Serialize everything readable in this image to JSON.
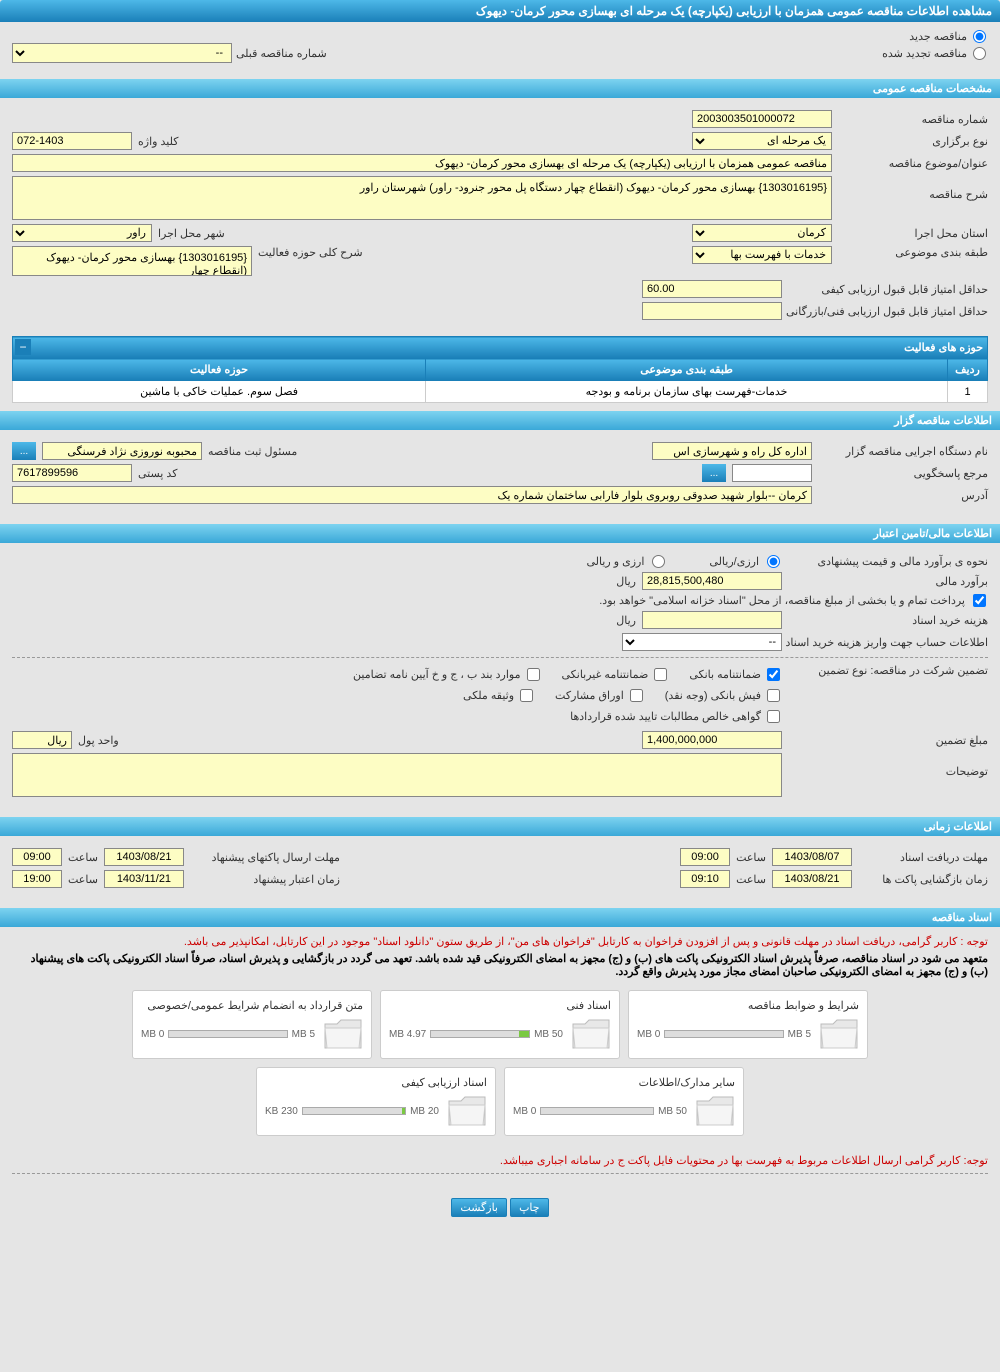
{
  "page_title": "مشاهده اطلاعات مناقصه عمومی همزمان با ارزیابی (یکپارچه) یک مرحله ای بهسازی محور کرمان- دیهوک",
  "top_radios": {
    "new_label": "مناقصه جدید",
    "renew_label": "مناقصه تجدید شده",
    "prev_number_label": "شماره مناقصه قبلی",
    "prev_number_value": "--"
  },
  "sections": {
    "general": "مشخصات مناقصه عمومی",
    "activity_areas": "حوزه های فعالیت",
    "organizer": "اطلاعات مناقصه گزار",
    "financial": "اطلاعات مالی/تامین اعتبار",
    "timing": "اطلاعات زمانی",
    "docs": "اسناد مناقصه"
  },
  "general": {
    "tender_no_label": "شماره مناقصه",
    "tender_no": "2003003501000072",
    "type_label": "نوع برگزاری",
    "type_value": "یک مرحله ای",
    "keyword_label": "کلید واژه",
    "keyword_value": "072-1403",
    "subject_label": "عنوان/موضوع مناقصه",
    "subject_value": "مناقصه عمومی همزمان با ارزیابی (یکپارچه) یک مرحله ای بهسازی محور کرمان- دیهوک",
    "desc_label": "شرح مناقصه",
    "desc_value": "{1303016195} بهسازی محور کرمان- دیهوک (انقطاع چهار دستگاه پل محور جنرود- راور) شهرستان راور",
    "province_label": "استان محل اجرا",
    "province_value": "کرمان",
    "city_label": "شهر محل اجرا",
    "city_value": "راور",
    "category_label": "طبقه بندی موضوعی",
    "category_value": "خدمات با فهرست بها",
    "activity_scope_label": "شرح کلی حوزه فعالیت",
    "activity_scope_value": "{1303016195} بهسازی محور کرمان- دیهوک (انقطاع چهار",
    "min_quality_label": "حداقل امتیاز قابل قبول ارزیابی کیفی",
    "min_quality_value": "60.00",
    "min_tech_label": "حداقل امتیاز قابل قبول ارزیابی فنی/بازرگانی"
  },
  "activity_table": {
    "col_row": "ردیف",
    "col_category": "طبقه بندی موضوعی",
    "col_area": "حوزه فعالیت",
    "row1_idx": "1",
    "row1_cat": "خدمات-فهرست بهای سازمان برنامه و بودجه",
    "row1_area": "فصل سوم. عملیات خاکی با ماشین"
  },
  "organizer": {
    "exec_label": "نام دستگاه اجرایی مناقصه گزار",
    "exec_value": "اداره کل راه و شهرسازی اس",
    "reg_officer_label": "مسئول ثبت مناقصه",
    "reg_officer_value": "محبوبه نوروزی نژاد فرسنگی",
    "contact_label": "مرجع پاسخگویی",
    "postal_label": "کد پستی",
    "postal_value": "7617899596",
    "address_label": "آدرس",
    "address_value": "کرمان --بلوار شهید صدوقی روبروی بلوار فارابی ساختمان شماره یک"
  },
  "financial": {
    "estimate_method_label": "نحوه ی برآورد مالی و قیمت پیشنهادی",
    "rial_opt": "ارزی/ریالی",
    "currency_opt": "ارزی و ریالی",
    "estimate_label": "برآورد مالی",
    "estimate_value": "28,815,500,480",
    "unit_rial": "ریال",
    "treasury_note": "پرداخت تمام و یا بخشی از مبلغ مناقصه، از محل \"اسناد خزانه اسلامی\" خواهد بود.",
    "doc_fee_label": "هزینه خرید اسناد",
    "account_info_label": "اطلاعات حساب جهت واریز هزینه خرید اسناد",
    "account_value": "--",
    "guarantee_type_label": "تضمین شرکت در مناقصه:   نوع تضمین",
    "cb_bank_guarantee": "ضمانتنامه بانکی",
    "cb_nonbank_guarantee": "ضمانتنامه غیربانکی",
    "cb_clauses": "موارد بند ب ، ج و خ آیین نامه تضامین",
    "cb_cash": "فیش بانکی (وجه نقد)",
    "cb_bonds": "اوراق مشارکت",
    "cb_property": "وثیقه ملکی",
    "cb_receivables": "گواهی خالص مطالبات تایید شده قراردادها",
    "guarantee_amount_label": "مبلغ تضمین",
    "guarantee_amount": "1,400,000,000",
    "unit_label": "واحد پول",
    "unit_value": "ریال",
    "notes_label": "توضیحات"
  },
  "timing": {
    "receive_deadline_label": "مهلت دریافت اسناد",
    "receive_date": "1403/08/07",
    "receive_time_label": "ساعت",
    "receive_time": "09:00",
    "send_deadline_label": "مهلت ارسال پاکتهای پیشنهاد",
    "send_date": "1403/08/21",
    "send_time": "09:00",
    "open_label": "زمان بازگشایی پاکت ها",
    "open_date": "1403/08/21",
    "open_time": "09:10",
    "validity_label": "زمان اعتبار پیشنهاد",
    "validity_date": "1403/11/21",
    "validity_time": "19:00"
  },
  "docs": {
    "note1": "توجه : کاربر گرامی، دریافت اسناد در مهلت قانونی و پس از افزودن فراخوان به کارتابل \"فراخوان های من\"، از طریق ستون \"دانلود اسناد\" موجود در این کارتابل، امکانپذیر می باشد.",
    "note2_bold": "متعهد می شود در اسناد مناقصه، صرفاً پذیرش اسناد الکترونیکی پاکت های (ب) و (ج) مجهز به امضای الکترونیکی قید شده باشد. تعهد می گردد در بازگشایی و پذیرش اسناد، صرفاً اسناد الکترونیکی پاکت های پیشنهاد (ب) و (ج) مجهز به امضای الکترونیکی صاحبان امضای مجاز مورد پذیرش واقع گردد.",
    "note3": "توجه: کاربر گرامی ارسال اطلاعات مربوط به فهرست بها در محتویات فایل پاکت ج در سامانه اجباری میباشد.",
    "cards": [
      {
        "title": "شرایط و ضوابط مناقصه",
        "used": "0 MB",
        "limit": "5 MB",
        "fill_pct": 0
      },
      {
        "title": "اسناد فنی",
        "used": "4.97 MB",
        "limit": "50 MB",
        "fill_pct": 10
      },
      {
        "title": "متن قرارداد به انضمام شرایط عمومی/خصوصی",
        "used": "0 MB",
        "limit": "5 MB",
        "fill_pct": 0
      },
      {
        "title": "سایر مدارک/اطلاعات",
        "used": "0 MB",
        "limit": "50 MB",
        "fill_pct": 0
      },
      {
        "title": "اسناد ارزیابی کیفی",
        "used": "230 KB",
        "limit": "20 MB",
        "fill_pct": 3
      }
    ]
  },
  "buttons": {
    "back": "بازگشت",
    "print": "چاپ",
    "ellipsis": "..."
  },
  "colors": {
    "header_blue_top": "#4db8e8",
    "header_blue_bottom": "#1a7fb8",
    "yellow_bg": "#fdfdc4",
    "page_bg": "#e5e5e5",
    "red": "#cc0000",
    "green_fill": "#7ac943"
  }
}
